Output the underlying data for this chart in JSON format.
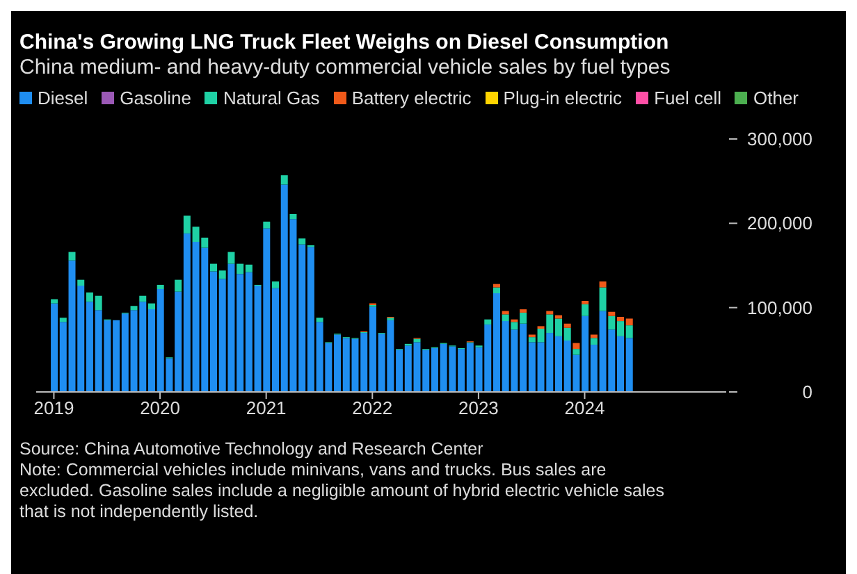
{
  "chart_data": {
    "type": "bar",
    "title": "China's Growing LNG Truck Fleet Weighs on Diesel Consumption",
    "subtitle": "China medium- and heavy-duty commercial vehicle sales by fuel types",
    "stacked": true,
    "legend": "top left",
    "grid": false,
    "x": [
      "2019-01",
      "2019-02",
      "2019-03",
      "2019-04",
      "2019-05",
      "2019-06",
      "2019-07",
      "2019-08",
      "2019-09",
      "2019-10",
      "2019-11",
      "2019-12",
      "2020-01",
      "2020-02",
      "2020-03",
      "2020-04",
      "2020-05",
      "2020-06",
      "2020-07",
      "2020-08",
      "2020-09",
      "2020-10",
      "2020-11",
      "2020-12",
      "2021-01",
      "2021-02",
      "2021-03",
      "2021-04",
      "2021-05",
      "2021-06",
      "2021-07",
      "2021-08",
      "2021-09",
      "2021-10",
      "2021-11",
      "2021-12",
      "2022-01",
      "2022-02",
      "2022-03",
      "2022-04",
      "2022-05",
      "2022-06",
      "2022-07",
      "2022-08",
      "2022-09",
      "2022-10",
      "2022-11",
      "2022-12",
      "2023-01",
      "2023-02",
      "2023-03",
      "2023-04",
      "2023-05",
      "2023-06",
      "2023-07",
      "2023-08",
      "2023-09",
      "2023-10",
      "2023-11",
      "2023-12",
      "2024-01",
      "2024-02",
      "2024-03",
      "2024-04",
      "2024-05",
      "2024-06"
    ],
    "xlim": [
      "2018-11",
      "2025-05"
    ],
    "xticks": [
      {
        "value": "2019-01",
        "label": "2019"
      },
      {
        "value": "2020-01",
        "label": "2020"
      },
      {
        "value": "2021-01",
        "label": "2021"
      },
      {
        "value": "2022-01",
        "label": "2022"
      },
      {
        "value": "2023-01",
        "label": "2023"
      },
      {
        "value": "2024-01",
        "label": "2024"
      }
    ],
    "ylim": [
      0,
      300000
    ],
    "yticks": [
      {
        "value": 0,
        "label": "0"
      },
      {
        "value": 100000,
        "label": "100,000"
      },
      {
        "value": 200000,
        "label": "200,000"
      },
      {
        "value": 300000,
        "label": "300,000"
      }
    ],
    "series": [
      {
        "name": "Diesel",
        "color": "#1f8ef1",
        "values": [
          105000,
          83000,
          156000,
          126000,
          107000,
          97000,
          85000,
          85000,
          93000,
          97000,
          107000,
          98000,
          122000,
          40000,
          119000,
          188000,
          178000,
          171000,
          143000,
          134000,
          152000,
          140000,
          142000,
          126000,
          194000,
          123000,
          246000,
          205000,
          175000,
          172000,
          83000,
          58000,
          68000,
          64000,
          63000,
          70000,
          101000,
          69000,
          85000,
          50000,
          55000,
          59000,
          50000,
          52000,
          57000,
          54000,
          51000,
          58000,
          53000,
          80000,
          117000,
          84000,
          74000,
          81000,
          59000,
          59000,
          70000,
          66000,
          61000,
          44000,
          90000,
          56000,
          96000,
          74000,
          66000,
          64000
        ]
      },
      {
        "name": "Gasoline",
        "color": "#9b59b6",
        "values": [
          null,
          null,
          null,
          null,
          null,
          null,
          null,
          null,
          null,
          null,
          null,
          null,
          null,
          null,
          null,
          null,
          null,
          null,
          null,
          null,
          null,
          null,
          null,
          null,
          null,
          null,
          null,
          null,
          null,
          null,
          null,
          null,
          null,
          null,
          null,
          null,
          null,
          null,
          null,
          null,
          null,
          null,
          null,
          null,
          null,
          null,
          null,
          null,
          null,
          null,
          null,
          null,
          null,
          null,
          null,
          null,
          null,
          null,
          null,
          null,
          null,
          null,
          null,
          null,
          null,
          null
        ]
      },
      {
        "name": "Natural Gas",
        "color": "#1fd1a5",
        "values": [
          5000,
          5000,
          10000,
          7000,
          11000,
          17000,
          1000,
          0,
          1000,
          5000,
          7000,
          7000,
          5000,
          1000,
          14000,
          21000,
          18000,
          12000,
          9000,
          10000,
          14000,
          12000,
          9000,
          1000,
          8000,
          8000,
          11000,
          6000,
          7000,
          2000,
          5000,
          1000,
          1000,
          1000,
          1000,
          1000,
          2000,
          1000,
          3000,
          1000,
          2000,
          4000,
          1000,
          1000,
          1000,
          1000,
          1000,
          1000,
          2000,
          6000,
          7000,
          8000,
          9000,
          13000,
          6000,
          16000,
          22000,
          21000,
          15000,
          7000,
          14000,
          8000,
          28000,
          16000,
          18000,
          15000
        ]
      },
      {
        "name": "Battery electric",
        "color": "#f05a1a",
        "values": [
          0,
          0,
          0,
          0,
          0,
          0,
          0,
          0,
          0,
          0,
          0,
          0,
          0,
          0,
          0,
          0,
          0,
          0,
          0,
          0,
          0,
          0,
          0,
          0,
          0,
          0,
          0,
          0,
          0,
          0,
          0,
          0,
          0,
          0,
          0,
          1000,
          2000,
          0,
          1000,
          0,
          0,
          1000,
          0,
          0,
          0,
          0,
          0,
          1000,
          0,
          0,
          4000,
          4000,
          3000,
          4000,
          3000,
          3000,
          4000,
          4000,
          5000,
          7000,
          4000,
          4000,
          7000,
          5000,
          5000,
          8000
        ]
      },
      {
        "name": "Plug-in electric",
        "color": "#ffd400",
        "values": [
          null,
          null,
          null,
          null,
          null,
          null,
          null,
          null,
          null,
          null,
          null,
          null,
          null,
          null,
          null,
          null,
          null,
          null,
          null,
          null,
          null,
          null,
          null,
          null,
          null,
          null,
          null,
          null,
          null,
          null,
          null,
          null,
          null,
          null,
          null,
          null,
          null,
          null,
          null,
          null,
          null,
          null,
          null,
          null,
          null,
          null,
          null,
          null,
          null,
          null,
          null,
          null,
          null,
          null,
          null,
          null,
          null,
          null,
          null,
          null,
          null,
          null,
          null,
          null,
          null,
          null
        ]
      },
      {
        "name": "Fuel cell",
        "color": "#ff4fa6",
        "values": [
          null,
          null,
          null,
          null,
          null,
          null,
          null,
          null,
          null,
          null,
          null,
          null,
          null,
          null,
          null,
          null,
          null,
          null,
          null,
          null,
          null,
          null,
          null,
          null,
          null,
          null,
          null,
          null,
          null,
          null,
          null,
          null,
          null,
          null,
          null,
          null,
          null,
          null,
          null,
          null,
          null,
          null,
          null,
          null,
          null,
          null,
          null,
          null,
          null,
          null,
          null,
          null,
          null,
          null,
          null,
          null,
          null,
          null,
          null,
          null,
          null,
          null,
          null,
          null,
          null,
          null
        ]
      },
      {
        "name": "Other",
        "color": "#4caf50",
        "values": [
          null,
          null,
          null,
          null,
          null,
          null,
          null,
          null,
          null,
          null,
          null,
          null,
          null,
          null,
          null,
          null,
          null,
          null,
          null,
          null,
          null,
          null,
          null,
          null,
          null,
          null,
          null,
          null,
          null,
          null,
          null,
          null,
          null,
          null,
          null,
          null,
          null,
          null,
          null,
          null,
          null,
          null,
          null,
          null,
          null,
          null,
          null,
          null,
          null,
          null,
          null,
          null,
          null,
          null,
          null,
          null,
          null,
          null,
          null,
          null,
          null,
          null,
          null,
          null,
          null,
          null
        ]
      }
    ],
    "annotations": [
      "Source: China Automotive Technology and Research Center",
      "Note: Commercial vehicles include minivans, vans and trucks. Bus sales are excluded. Gasoline sales include a negligible amount of hybrid electric vehicle sales that is not independently listed."
    ]
  }
}
